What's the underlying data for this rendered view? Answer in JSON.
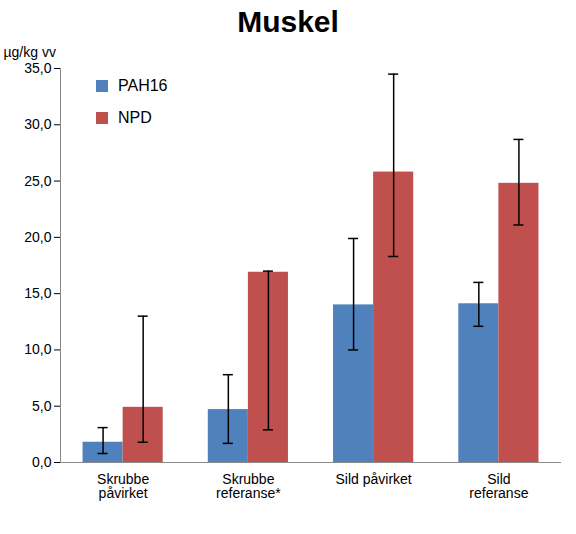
{
  "chart_data": {
    "type": "bar",
    "title": "Muskel",
    "y_label": "µg/kg vv",
    "categories": [
      "Skrubbe påvirket",
      "Skrubbe referanse*",
      "Sild påvirket",
      "Sild referanse"
    ],
    "series": [
      {
        "name": "PAH16",
        "color": "#4f81bd",
        "values": [
          1.8,
          4.7,
          14.0,
          14.1
        ],
        "error_low": [
          0.8,
          1.7,
          10.0,
          12.1
        ],
        "error_high": [
          3.1,
          7.8,
          19.9,
          16.0
        ]
      },
      {
        "name": "NPD",
        "color": "#c0504d",
        "values": [
          4.9,
          16.9,
          25.8,
          24.8
        ],
        "error_low": [
          1.8,
          2.9,
          18.3,
          21.1
        ],
        "error_high": [
          13.0,
          17.0,
          34.5,
          28.7
        ]
      }
    ],
    "ylim": [
      0,
      35
    ],
    "yticks": [
      {
        "value": 0,
        "label": "0,0"
      },
      {
        "value": 5,
        "label": "5,0"
      },
      {
        "value": 10,
        "label": "10,0"
      },
      {
        "value": 15,
        "label": "15,0"
      },
      {
        "value": 20,
        "label": "20,0"
      },
      {
        "value": 25,
        "label": "25,0"
      },
      {
        "value": 30,
        "label": "30,0"
      },
      {
        "value": 35,
        "label": "35,0"
      }
    ],
    "grid": false,
    "legend": "top-left"
  }
}
